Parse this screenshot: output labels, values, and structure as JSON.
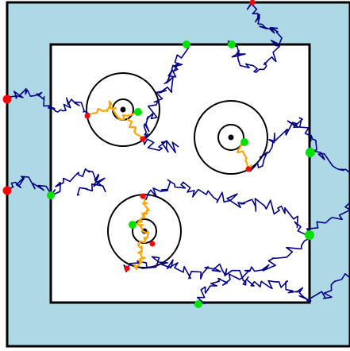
{
  "colors": {
    "outer_fill": "#add8e6",
    "inner_fill": "#ffffff",
    "boundary": "#000000",
    "walk": "#000080",
    "inner_walk": "#ffa500",
    "exit_marker": "#00e000",
    "start_marker": "#ff0000"
  },
  "wells": [
    {
      "id": "well-top-left",
      "radius_outer": 46,
      "radius_inner": 13
    },
    {
      "id": "well-right",
      "radius_outer": 46,
      "radius_inner": 16
    },
    {
      "id": "well-bottom",
      "radius_outer": 46,
      "radius_inner": 15
    }
  ],
  "markers": {
    "start_count": 9,
    "exit_count": 9
  }
}
